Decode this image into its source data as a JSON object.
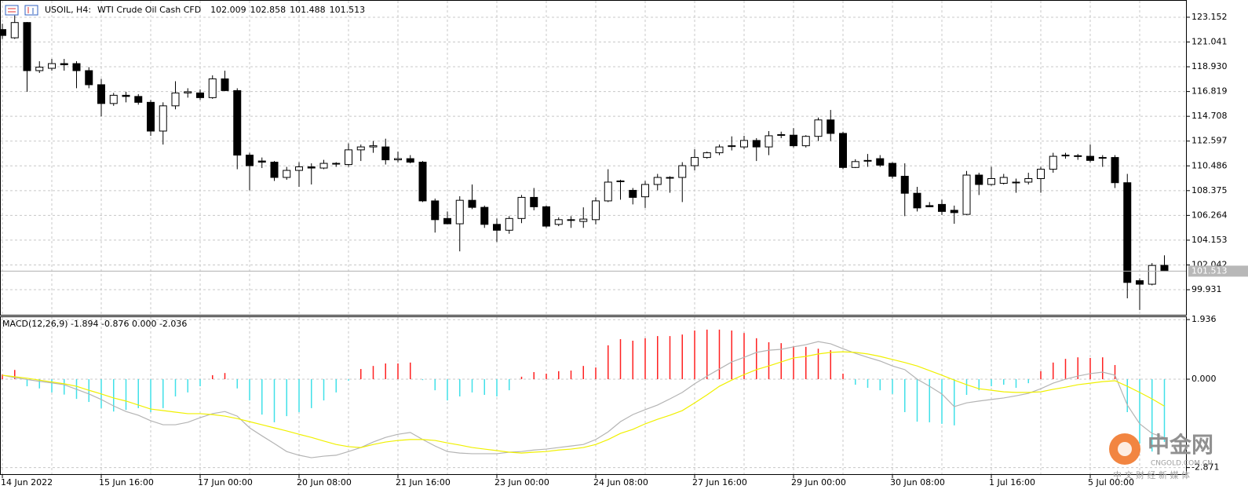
{
  "chart_data": [
    {
      "type": "candlestick",
      "symbol": "USOIL, H4:",
      "description": "WTI Crude Oil Cash CFD",
      "categories": [
        "14 Jun 2022",
        null,
        null,
        null,
        null,
        null,
        null,
        null,
        "15 Jun 16:00",
        null,
        null,
        null,
        null,
        null,
        null,
        null,
        "17 Jun 00:00",
        null,
        null,
        null,
        null,
        null,
        null,
        null,
        "20 Jun 08:00",
        null,
        null,
        null,
        null,
        null,
        null,
        null,
        "21 Jun 16:00",
        null,
        null,
        null,
        null,
        null,
        null,
        null,
        "23 Jun 00:00",
        null,
        null,
        null,
        null,
        null,
        null,
        null,
        "24 Jun 08:00",
        null,
        null,
        null,
        null,
        null,
        null,
        null,
        "27 Jun 16:00",
        null,
        null,
        null,
        null,
        null,
        null,
        null,
        "29 Jun 00:00",
        null,
        null,
        null,
        null,
        null,
        null,
        null,
        "30 Jun 08:00",
        null,
        null,
        null,
        null,
        null,
        null,
        null,
        "1 Jul 16:00",
        null,
        null,
        null,
        null,
        null,
        null,
        null,
        "5 Jul 00:00",
        null,
        null,
        null,
        null,
        null,
        null
      ],
      "open": [
        122.1,
        121.4,
        122.7,
        118.6,
        118.8,
        119.2,
        119.2,
        118.6,
        117.4,
        115.8,
        116.5,
        116.4,
        115.9,
        113.45,
        115.6,
        116.7,
        116.7,
        116.3,
        117.9,
        116.9,
        111.4,
        110.9,
        110.8,
        109.5,
        110.1,
        110.4,
        110.3,
        110.7,
        110.6,
        111.85,
        112.1,
        112.1,
        111.0,
        111.1,
        110.8,
        107.5,
        106.0,
        105.55,
        107.55,
        106.95,
        105.5,
        105.0,
        106.0,
        107.8,
        107.0,
        105.5,
        105.9,
        105.75,
        105.9,
        107.5,
        109.2,
        108.4,
        107.85,
        108.9,
        109.5,
        109.5,
        110.5,
        111.2,
        111.6,
        112.2,
        112.1,
        112.65,
        112.1,
        113.1,
        113.1,
        112.2,
        113.0,
        114.4,
        113.25,
        110.35,
        110.9,
        111.1,
        110.7,
        109.6,
        108.15,
        107.1,
        107.2,
        106.7,
        106.35,
        109.7,
        108.9,
        109.0,
        109.1,
        109.1,
        109.4,
        110.2,
        111.4,
        111.35,
        111.3,
        111.2,
        111.2,
        109.05,
        100.7,
        100.4,
        102.009
      ],
      "high": [
        122.6,
        123.3,
        122.75,
        119.4,
        119.6,
        119.6,
        119.4,
        118.9,
        117.9,
        116.7,
        116.8,
        116.6,
        116.1,
        115.9,
        117.7,
        117.1,
        117.0,
        118.2,
        118.6,
        117.1,
        111.6,
        111.2,
        110.9,
        110.4,
        110.8,
        110.7,
        111.0,
        110.8,
        112.4,
        112.3,
        112.6,
        112.8,
        111.7,
        111.4,
        110.9,
        107.7,
        106.6,
        107.9,
        108.9,
        107.1,
        106.0,
        106.2,
        108.0,
        108.6,
        107.1,
        106.1,
        106.2,
        106.95,
        107.8,
        110.2,
        109.3,
        108.6,
        109.2,
        109.8,
        109.6,
        110.8,
        111.9,
        111.7,
        112.3,
        113.0,
        113.05,
        112.85,
        113.45,
        113.4,
        113.7,
        113.1,
        114.6,
        115.25,
        113.4,
        111.05,
        111.5,
        111.4,
        110.8,
        110.7,
        108.7,
        107.4,
        107.6,
        107.1,
        110.05,
        109.9,
        110.4,
        109.8,
        109.4,
        109.9,
        110.4,
        111.6,
        111.6,
        111.5,
        112.3,
        111.4,
        111.4,
        109.8,
        100.9,
        102.2,
        102.858
      ],
      "low": [
        121.3,
        121.3,
        116.8,
        118.4,
        118.6,
        118.6,
        117.1,
        117.1,
        114.7,
        115.6,
        115.9,
        115.7,
        113.05,
        112.3,
        115.3,
        116.3,
        116.1,
        116.2,
        116.85,
        110.2,
        108.4,
        110.3,
        109.2,
        109.3,
        108.7,
        108.9,
        110.2,
        110.4,
        110.4,
        110.9,
        111.6,
        110.6,
        110.8,
        110.7,
        107.4,
        104.8,
        105.5,
        103.2,
        106.8,
        105.2,
        104.0,
        104.7,
        105.6,
        106.7,
        105.2,
        105.35,
        105.2,
        105.2,
        105.5,
        107.4,
        107.6,
        107.2,
        106.9,
        108.4,
        108.2,
        107.4,
        110.1,
        111.1,
        111.4,
        111.8,
        111.9,
        110.9,
        111.4,
        112.85,
        112.05,
        112.05,
        112.6,
        112.6,
        110.2,
        110.3,
        110.4,
        110.4,
        109.4,
        106.2,
        106.6,
        106.96,
        106.3,
        105.55,
        106.3,
        108.0,
        108.8,
        108.9,
        108.2,
        108.9,
        108.2,
        109.9,
        111.1,
        111.0,
        110.8,
        110.4,
        108.6,
        99.2,
        98.2,
        100.3,
        101.488
      ],
      "close": [
        121.6,
        122.7,
        118.6,
        118.9,
        119.2,
        119.1,
        118.6,
        117.4,
        115.8,
        116.5,
        116.4,
        115.9,
        113.45,
        115.6,
        116.7,
        116.8,
        116.3,
        117.9,
        116.9,
        111.4,
        110.5,
        110.8,
        109.5,
        110.1,
        110.4,
        110.3,
        110.7,
        110.65,
        111.85,
        112.1,
        112.2,
        111.0,
        111.1,
        110.8,
        107.5,
        105.9,
        105.55,
        107.55,
        106.95,
        105.5,
        105.0,
        106.0,
        107.8,
        107.0,
        105.35,
        105.9,
        105.85,
        105.95,
        107.5,
        109.1,
        109.15,
        107.8,
        108.9,
        109.5,
        109.5,
        110.5,
        111.2,
        111.6,
        112.1,
        112.2,
        112.65,
        112.1,
        113.05,
        113.15,
        112.2,
        113.0,
        114.4,
        113.25,
        110.35,
        110.85,
        110.95,
        110.55,
        109.6,
        108.15,
        106.9,
        107.0,
        106.6,
        106.5,
        109.7,
        108.9,
        109.4,
        109.5,
        109.1,
        109.4,
        110.2,
        111.3,
        111.4,
        111.3,
        110.95,
        111.15,
        109.05,
        100.55,
        100.4,
        102.0,
        101.513
      ],
      "up_color": "#ffffff",
      "down_color": "#000000",
      "outline_color": "#000000",
      "ylim": [
        97.86,
        124.62
      ],
      "yticks": [
        123.152,
        121.041,
        {
          "value": 118.93,
          "label": "118.930"
        },
        116.819,
        114.708,
        112.597,
        110.486,
        108.375,
        106.264,
        104.153,
        102.042,
        99.931
      ],
      "grid": true
    },
    {
      "type": "macd",
      "title": "MACD(12,26,9) -1.894 -0.876 0.000 -2.036",
      "bars": {
        "positive_color": "#ff2020",
        "negative_color": "#40e0e8",
        "values": [
          0.15,
          0.3,
          -0.23,
          -0.3,
          -0.43,
          -0.5,
          -0.64,
          -0.74,
          -0.94,
          -1.05,
          -1.0,
          -0.94,
          -1.07,
          -0.94,
          -0.56,
          -0.43,
          -0.23,
          0.13,
          0.2,
          -0.3,
          -0.69,
          -1.15,
          -1.4,
          -1.2,
          -1.07,
          -0.94,
          -0.69,
          -0.43,
          -0.05,
          0.33,
          0.43,
          0.51,
          0.51,
          0.54,
          -0.03,
          -0.36,
          -0.69,
          -0.56,
          -0.43,
          -0.51,
          -0.56,
          -0.36,
          0.08,
          0.23,
          0.18,
          0.26,
          0.28,
          0.43,
          0.38,
          1.1,
          1.3,
          1.25,
          1.33,
          1.4,
          1.4,
          1.45,
          1.58,
          1.61,
          1.61,
          1.58,
          1.5,
          1.33,
          1.2,
          1.17,
          1.07,
          1.05,
          0.99,
          0.94,
          0.18,
          -0.18,
          -0.28,
          -0.36,
          -0.48,
          -1.07,
          -1.38,
          -1.4,
          -1.45,
          -1.5,
          -0.51,
          -0.36,
          -0.23,
          -0.18,
          -0.28,
          -0.13,
          0.26,
          0.54,
          0.66,
          0.71,
          0.69,
          0.71,
          0.46,
          -1.07,
          -2.09,
          -2.35,
          -2.036
        ]
      },
      "series": [
        {
          "color": "#b4b4b4",
          "values": [
            0.13,
            0.05,
            -0.01,
            -0.07,
            -0.12,
            -0.18,
            -0.33,
            -0.48,
            -0.66,
            -0.87,
            -1.05,
            -1.17,
            -1.35,
            -1.48,
            -1.48,
            -1.4,
            -1.25,
            -1.12,
            -1.05,
            -1.2,
            -1.58,
            -1.84,
            -2.09,
            -2.35,
            -2.47,
            -2.55,
            -2.5,
            -2.47,
            -2.35,
            -2.22,
            -2.04,
            -1.89,
            -1.79,
            -1.73,
            -1.96,
            -2.17,
            -2.35,
            -2.4,
            -2.42,
            -2.42,
            -2.42,
            -2.37,
            -2.35,
            -2.3,
            -2.27,
            -2.22,
            -2.17,
            -2.12,
            -1.96,
            -1.71,
            -1.38,
            -1.15,
            -0.99,
            -0.84,
            -0.64,
            -0.43,
            -0.15,
            0.1,
            0.33,
            0.56,
            0.71,
            0.87,
            0.94,
            0.97,
            1.05,
            1.12,
            1.22,
            1.15,
            0.99,
            0.84,
            0.71,
            0.59,
            0.43,
            0.31,
            0.0,
            -0.23,
            -0.48,
            -0.89,
            -0.77,
            -0.71,
            -0.66,
            -0.61,
            -0.54,
            -0.46,
            -0.31,
            -0.13,
            0.0,
            0.1,
            0.18,
            0.23,
            0.13,
            -0.84,
            -1.45,
            -1.76,
            -1.894
          ]
        },
        {
          "color": "#f0f000",
          "values": [
            0.13,
            0.08,
            0.03,
            -0.03,
            -0.09,
            -0.15,
            -0.23,
            -0.36,
            -0.48,
            -0.61,
            -0.71,
            -0.84,
            -0.97,
            -1.02,
            -1.07,
            -1.12,
            -1.12,
            -1.15,
            -1.2,
            -1.28,
            -1.38,
            -1.48,
            -1.58,
            -1.68,
            -1.79,
            -1.89,
            -2.01,
            -2.12,
            -2.19,
            -2.22,
            -2.12,
            -2.04,
            -1.99,
            -1.96,
            -1.96,
            -1.99,
            -2.07,
            -2.14,
            -2.22,
            -2.27,
            -2.32,
            -2.37,
            -2.4,
            -2.37,
            -2.35,
            -2.3,
            -2.27,
            -2.22,
            -2.12,
            -1.96,
            -1.76,
            -1.63,
            -1.45,
            -1.3,
            -1.17,
            -1.02,
            -0.77,
            -0.51,
            -0.23,
            -0.03,
            0.15,
            0.31,
            0.43,
            0.56,
            0.69,
            0.74,
            0.82,
            0.87,
            0.89,
            0.87,
            0.82,
            0.74,
            0.64,
            0.54,
            0.43,
            0.28,
            0.13,
            -0.03,
            -0.18,
            -0.31,
            -0.36,
            -0.41,
            -0.43,
            -0.43,
            -0.41,
            -0.33,
            -0.26,
            -0.18,
            -0.13,
            -0.08,
            -0.05,
            -0.23,
            -0.43,
            -0.64,
            -0.876
          ]
        }
      ],
      "ylim": [
        -3.11,
        2.04
      ],
      "yticks": [
        1.936,
        {
          "value": 0,
          "label": "0.000"
        },
        -2.871
      ],
      "grid": true
    }
  ],
  "watermark": {
    "name": "中金网",
    "site": "CNGOLD.COM.CN",
    "slogan": "中 文 财 经 新 媒 体"
  }
}
